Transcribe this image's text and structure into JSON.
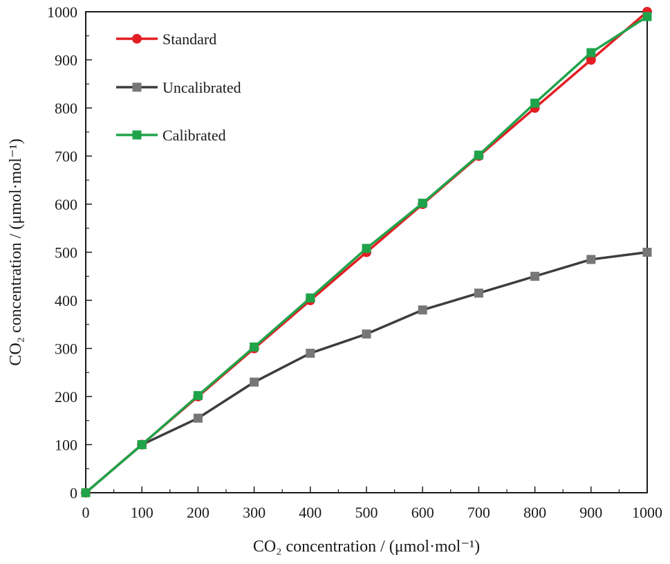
{
  "chart_data": {
    "type": "line",
    "xlabel": "CO₂ concentration / (μmol·mol⁻¹)",
    "ylabel": "CO₂ concentration / (μmol·mol⁻¹)",
    "xlim": [
      0,
      1000
    ],
    "ylim": [
      0,
      1000
    ],
    "x_ticks": [
      "0",
      "100",
      "200",
      "300",
      "400",
      "500",
      "600",
      "700",
      "800",
      "900",
      "1000"
    ],
    "y_ticks": [
      "0",
      "100",
      "200",
      "300",
      "400",
      "500",
      "600",
      "700",
      "800",
      "900",
      "1000"
    ],
    "grid": false,
    "legend_position": "top-left",
    "x": [
      0,
      100,
      200,
      300,
      400,
      500,
      600,
      700,
      800,
      900,
      1000
    ],
    "series": [
      {
        "name": "Standard",
        "color": "#e31e24",
        "marker": "circle",
        "values": [
          0,
          100,
          200,
          300,
          400,
          500,
          600,
          700,
          800,
          900,
          1000
        ]
      },
      {
        "name": "Uncalibrated",
        "color": "#3d3d3d",
        "marker_color": "#777777",
        "marker": "square",
        "values": [
          0,
          100,
          155,
          230,
          290,
          330,
          380,
          415,
          450,
          485,
          500
        ]
      },
      {
        "name": "Calibrated",
        "color": "#1fa34a",
        "marker": "square",
        "values": [
          0,
          100,
          202,
          303,
          405,
          508,
          602,
          702,
          810,
          915,
          990
        ]
      }
    ]
  }
}
